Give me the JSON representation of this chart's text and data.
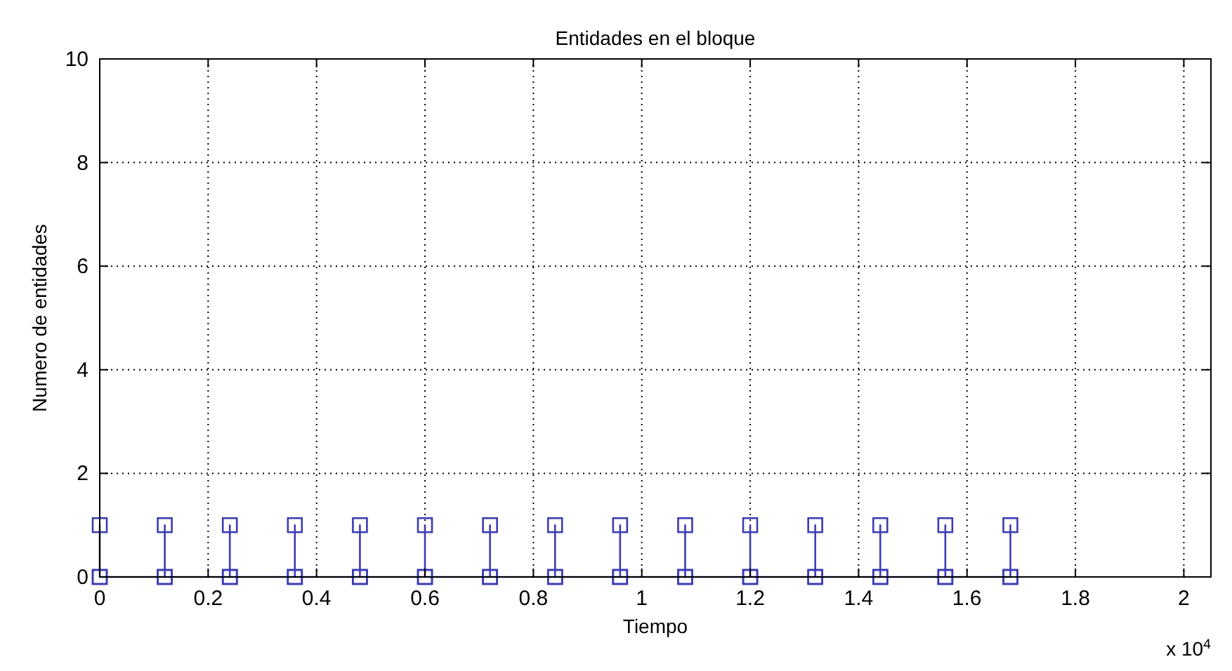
{
  "chart_data": {
    "type": "line",
    "title": "Entidades en el bloque",
    "xlabel": "Tiempo",
    "ylabel": "Numero de entidades",
    "annotations": [
      "x 10$^{4}$"
    ],
    "x": [
      0,
      0,
      0,
      0.12,
      0.12,
      0.12,
      0.24,
      0.24,
      0.24,
      0.36,
      0.36,
      0.36,
      0.48,
      0.48,
      0.48,
      0.6,
      0.6,
      0.6,
      0.72,
      0.72,
      0.72,
      0.84,
      0.84,
      0.84,
      0.96,
      0.96,
      0.96,
      1.08,
      1.08,
      1.08,
      1.2,
      1.2,
      1.2,
      1.32,
      1.32,
      1.32,
      1.44,
      1.44,
      1.44,
      1.56,
      1.56,
      1.56,
      1.68,
      1.68,
      1.68
    ],
    "series": [
      {
        "color": "#3c3cb4",
        "values": [
          0,
          1,
          0,
          0,
          1,
          0,
          0,
          1,
          0,
          0,
          1,
          0,
          0,
          1,
          0,
          0,
          1,
          0,
          0,
          1,
          0,
          0,
          1,
          0,
          0,
          1,
          0,
          0,
          1,
          0,
          0,
          1,
          0,
          0,
          1,
          0,
          0,
          1,
          0,
          0,
          1,
          0,
          0,
          1,
          0
        ]
      }
    ],
    "xlim": [
      0,
      2.05
    ],
    "xticks": [
      0,
      0.2,
      0.4,
      0.6,
      0.8,
      1,
      1.2,
      1.4,
      1.6,
      1.8,
      2
    ],
    "ylim": [
      0,
      10
    ],
    "yticks": [
      0,
      2,
      4,
      6,
      8,
      10
    ],
    "grid": true,
    "marker": "square",
    "line_style": "solid"
  }
}
